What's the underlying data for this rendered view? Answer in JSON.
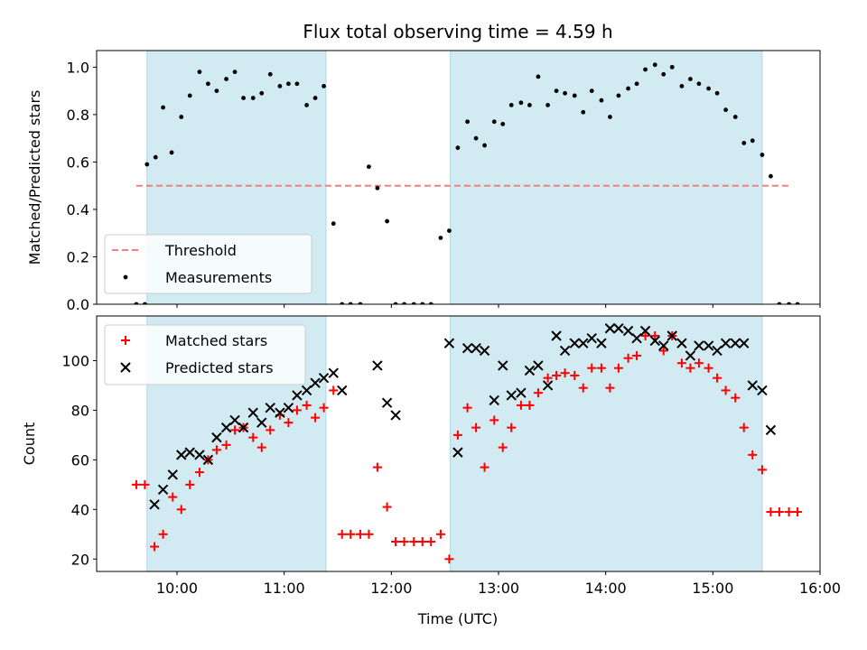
{
  "chart_data": {
    "title": "Flux total observing time = 4.59 h",
    "xlabel": "Time (UTC)",
    "xlim": [
      9.25,
      16.0
    ],
    "x_ticks": [
      10,
      11,
      12,
      13,
      14,
      15,
      16
    ],
    "x_tick_labels": [
      "10:00",
      "11:00",
      "12:00",
      "13:00",
      "14:00",
      "15:00",
      "16:00"
    ],
    "shaded_spans": [
      [
        9.72,
        11.39
      ],
      [
        12.55,
        15.46
      ]
    ],
    "shade_color": "#add8e6",
    "panels": [
      {
        "type": "scatter",
        "ylabel": "Matched/Predicted stars",
        "ylim": [
          0,
          1.07
        ],
        "y_ticks": [
          0.0,
          0.2,
          0.4,
          0.6,
          0.8,
          1.0
        ],
        "y_tick_labels": [
          "0.0",
          "0.2",
          "0.4",
          "0.6",
          "0.8",
          "1.0"
        ],
        "legend_position": "lower-left",
        "threshold": {
          "name": "Threshold",
          "value": 0.5,
          "x_range": [
            9.62,
            15.72
          ],
          "color": "#f08080"
        },
        "series": [
          {
            "name": "Measurements",
            "color": "#000000",
            "marker": "dot",
            "points": [
              [
                9.62,
                0.0
              ],
              [
                9.7,
                0.0
              ],
              [
                9.72,
                0.59
              ],
              [
                9.8,
                0.62
              ],
              [
                9.87,
                0.83
              ],
              [
                9.95,
                0.64
              ],
              [
                10.04,
                0.79
              ],
              [
                10.12,
                0.88
              ],
              [
                10.21,
                0.98
              ],
              [
                10.29,
                0.93
              ],
              [
                10.37,
                0.9
              ],
              [
                10.46,
                0.95
              ],
              [
                10.54,
                0.98
              ],
              [
                10.62,
                0.87
              ],
              [
                10.71,
                0.87
              ],
              [
                10.79,
                0.89
              ],
              [
                10.87,
                0.97
              ],
              [
                10.96,
                0.92
              ],
              [
                11.04,
                0.93
              ],
              [
                11.12,
                0.93
              ],
              [
                11.21,
                0.84
              ],
              [
                11.29,
                0.87
              ],
              [
                11.37,
                0.92
              ],
              [
                11.46,
                0.34
              ],
              [
                11.54,
                0.0
              ],
              [
                11.62,
                0.0
              ],
              [
                11.71,
                0.0
              ],
              [
                11.79,
                0.58
              ],
              [
                11.87,
                0.49
              ],
              [
                11.96,
                0.35
              ],
              [
                12.04,
                0.0
              ],
              [
                12.12,
                0.0
              ],
              [
                12.21,
                0.0
              ],
              [
                12.29,
                0.0
              ],
              [
                12.37,
                0.0
              ],
              [
                12.46,
                0.28
              ],
              [
                12.54,
                0.31
              ],
              [
                12.62,
                0.66
              ],
              [
                12.71,
                0.77
              ],
              [
                12.79,
                0.7
              ],
              [
                12.87,
                0.67
              ],
              [
                12.96,
                0.77
              ],
              [
                13.04,
                0.76
              ],
              [
                13.12,
                0.84
              ],
              [
                13.21,
                0.85
              ],
              [
                13.29,
                0.84
              ],
              [
                13.37,
                0.96
              ],
              [
                13.46,
                0.84
              ],
              [
                13.54,
                0.9
              ],
              [
                13.62,
                0.89
              ],
              [
                13.71,
                0.88
              ],
              [
                13.79,
                0.81
              ],
              [
                13.87,
                0.9
              ],
              [
                13.96,
                0.86
              ],
              [
                14.04,
                0.79
              ],
              [
                14.12,
                0.88
              ],
              [
                14.21,
                0.91
              ],
              [
                14.29,
                0.93
              ],
              [
                14.37,
                0.99
              ],
              [
                14.46,
                1.01
              ],
              [
                14.54,
                0.97
              ],
              [
                14.62,
                1.0
              ],
              [
                14.71,
                0.92
              ],
              [
                14.79,
                0.95
              ],
              [
                14.87,
                0.93
              ],
              [
                14.96,
                0.91
              ],
              [
                15.04,
                0.89
              ],
              [
                15.12,
                0.82
              ],
              [
                15.21,
                0.79
              ],
              [
                15.29,
                0.68
              ],
              [
                15.37,
                0.69
              ],
              [
                15.46,
                0.63
              ],
              [
                15.54,
                0.54
              ],
              [
                15.62,
                0.0
              ],
              [
                15.71,
                0.0
              ],
              [
                15.79,
                0.0
              ]
            ]
          }
        ]
      },
      {
        "type": "scatter",
        "ylabel": "Count",
        "ylim": [
          15,
          118
        ],
        "y_ticks": [
          20,
          40,
          60,
          80,
          100
        ],
        "y_tick_labels": [
          "20",
          "40",
          "60",
          "80",
          "100"
        ],
        "legend_position": "upper-left",
        "series": [
          {
            "name": "Matched stars",
            "color": "#ff0000",
            "marker": "plus",
            "points": [
              [
                9.62,
                50
              ],
              [
                9.7,
                50
              ],
              [
                9.79,
                25
              ],
              [
                9.87,
                30
              ],
              [
                9.96,
                45
              ],
              [
                10.04,
                40
              ],
              [
                10.12,
                50
              ],
              [
                10.21,
                55
              ],
              [
                10.29,
                60
              ],
              [
                10.37,
                64
              ],
              [
                10.46,
                66
              ],
              [
                10.54,
                72
              ],
              [
                10.62,
                73
              ],
              [
                10.71,
                69
              ],
              [
                10.79,
                65
              ],
              [
                10.87,
                72
              ],
              [
                10.96,
                78
              ],
              [
                11.04,
                75
              ],
              [
                11.12,
                80
              ],
              [
                11.21,
                82
              ],
              [
                11.29,
                77
              ],
              [
                11.37,
                81
              ],
              [
                11.46,
                88
              ],
              [
                11.54,
                30
              ],
              [
                11.62,
                30
              ],
              [
                11.71,
                30
              ],
              [
                11.79,
                30
              ],
              [
                11.87,
                57
              ],
              [
                11.96,
                41
              ],
              [
                12.04,
                27
              ],
              [
                12.12,
                27
              ],
              [
                12.21,
                27
              ],
              [
                12.29,
                27
              ],
              [
                12.37,
                27
              ],
              [
                12.46,
                30
              ],
              [
                12.54,
                20
              ],
              [
                12.62,
                70
              ],
              [
                12.71,
                81
              ],
              [
                12.79,
                73
              ],
              [
                12.87,
                57
              ],
              [
                12.96,
                76
              ],
              [
                13.04,
                65
              ],
              [
                13.12,
                73
              ],
              [
                13.21,
                82
              ],
              [
                13.29,
                82
              ],
              [
                13.37,
                87
              ],
              [
                13.46,
                93
              ],
              [
                13.54,
                94
              ],
              [
                13.62,
                95
              ],
              [
                13.71,
                94
              ],
              [
                13.79,
                89
              ],
              [
                13.87,
                97
              ],
              [
                13.96,
                97
              ],
              [
                14.04,
                89
              ],
              [
                14.12,
                97
              ],
              [
                14.21,
                101
              ],
              [
                14.29,
                102
              ],
              [
                14.37,
                110
              ],
              [
                14.46,
                110
              ],
              [
                14.54,
                104
              ],
              [
                14.62,
                110
              ],
              [
                14.71,
                99
              ],
              [
                14.79,
                97
              ],
              [
                14.87,
                99
              ],
              [
                14.96,
                97
              ],
              [
                15.04,
                93
              ],
              [
                15.12,
                88
              ],
              [
                15.21,
                85
              ],
              [
                15.29,
                73
              ],
              [
                15.37,
                62
              ],
              [
                15.46,
                56
              ],
              [
                15.54,
                39
              ],
              [
                15.62,
                39
              ],
              [
                15.71,
                39
              ],
              [
                15.79,
                39
              ]
            ]
          },
          {
            "name": "Predicted stars",
            "color": "#000000",
            "marker": "x",
            "points": [
              [
                9.79,
                42
              ],
              [
                9.87,
                48
              ],
              [
                9.96,
                54
              ],
              [
                10.04,
                62
              ],
              [
                10.12,
                63
              ],
              [
                10.21,
                62
              ],
              [
                10.29,
                60
              ],
              [
                10.37,
                69
              ],
              [
                10.46,
                73
              ],
              [
                10.54,
                76
              ],
              [
                10.62,
                73
              ],
              [
                10.71,
                79
              ],
              [
                10.79,
                75
              ],
              [
                10.87,
                81
              ],
              [
                10.96,
                79
              ],
              [
                11.04,
                81
              ],
              [
                11.12,
                86
              ],
              [
                11.21,
                88
              ],
              [
                11.29,
                91
              ],
              [
                11.37,
                93
              ],
              [
                11.46,
                95
              ],
              [
                11.54,
                88
              ],
              [
                11.87,
                98
              ],
              [
                11.96,
                83
              ],
              [
                12.04,
                78
              ],
              [
                12.54,
                107
              ],
              [
                12.62,
                63
              ],
              [
                12.71,
                105
              ],
              [
                12.79,
                105
              ],
              [
                12.87,
                104
              ],
              [
                12.96,
                84
              ],
              [
                13.04,
                98
              ],
              [
                13.12,
                86
              ],
              [
                13.21,
                87
              ],
              [
                13.29,
                96
              ],
              [
                13.37,
                98
              ],
              [
                13.46,
                90
              ],
              [
                13.54,
                110
              ],
              [
                13.62,
                104
              ],
              [
                13.71,
                107
              ],
              [
                13.79,
                107
              ],
              [
                13.87,
                109
              ],
              [
                13.96,
                107
              ],
              [
                14.04,
                113
              ],
              [
                14.12,
                113
              ],
              [
                14.21,
                112
              ],
              [
                14.29,
                109
              ],
              [
                14.37,
                112
              ],
              [
                14.46,
                108
              ],
              [
                14.54,
                106
              ],
              [
                14.62,
                110
              ],
              [
                14.71,
                107
              ],
              [
                14.79,
                102
              ],
              [
                14.87,
                106
              ],
              [
                14.96,
                106
              ],
              [
                15.04,
                104
              ],
              [
                15.12,
                107
              ],
              [
                15.21,
                107
              ],
              [
                15.29,
                107
              ],
              [
                15.37,
                90
              ],
              [
                15.46,
                88
              ],
              [
                15.54,
                72
              ]
            ]
          }
        ]
      }
    ]
  }
}
